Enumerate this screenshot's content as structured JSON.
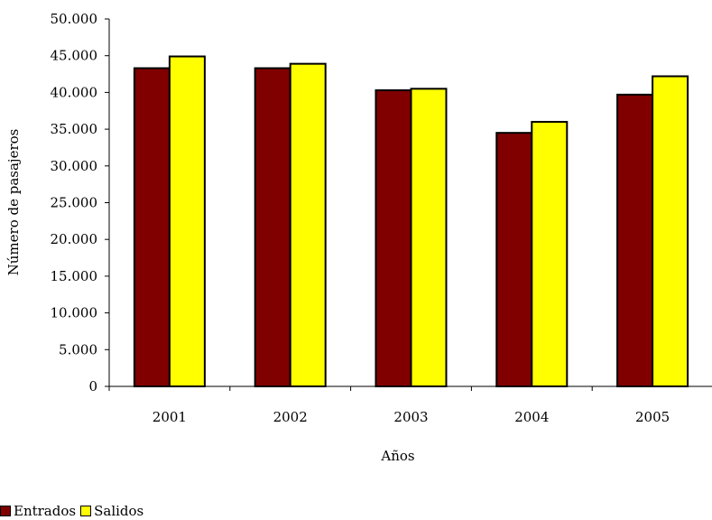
{
  "chart_data": {
    "type": "bar",
    "categories": [
      "2001",
      "2002",
      "2003",
      "2004",
      "2005"
    ],
    "series": [
      {
        "name": "Entrados",
        "color": "#800000",
        "values": [
          43300,
          43300,
          40300,
          34500,
          39700
        ]
      },
      {
        "name": "Salidos",
        "color": "#ffff00",
        "values": [
          44900,
          43900,
          40500,
          36000,
          42200
        ]
      }
    ],
    "title": "",
    "xlabel": "Años",
    "ylabel": "Número de pasajeros",
    "ylim": [
      0,
      50000
    ],
    "yticks": [
      0,
      5000,
      10000,
      15000,
      20000,
      25000,
      30000,
      35000,
      40000,
      45000,
      50000
    ],
    "ytick_labels": [
      "0",
      "5.000",
      "10.000",
      "15.000",
      "20.000",
      "25.000",
      "30.000",
      "35.000",
      "40.000",
      "45.000",
      "50.000"
    ],
    "grid": false,
    "legend_position": "bottom-left"
  }
}
